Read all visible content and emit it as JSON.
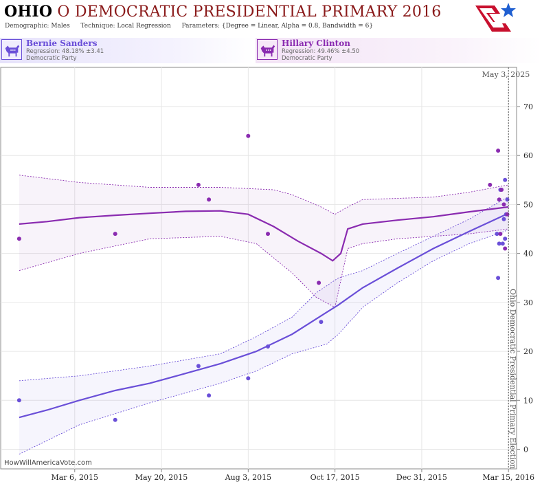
{
  "header": {
    "title_state": "OHIO",
    "title_rest": "O DEMOCRATIC PRESIDENTIAL PRIMARY 2016",
    "demographic_label": "Demographic:",
    "demographic_value": "Males",
    "technique_label": "Technique:",
    "technique_value": "Local Regression",
    "parameters_label": "Parameters:",
    "parameters_value": "{Degree = Linear, Alpha = 0.8, Bandwidth = 6}"
  },
  "candidates": [
    {
      "name": "Bernie Sanders",
      "regression": "Regression: 48.18% ±3.41",
      "party": "Democratic Party",
      "color": "#6a4fd8"
    },
    {
      "name": "Hillary Clinton",
      "regression": "Regression: 49.46% ±4.50",
      "party": "Democratic Party",
      "color": "#8a2bb0"
    }
  ],
  "footer": {
    "watermark": "HowWillAmericaVote.com"
  },
  "chart_data": {
    "type": "scatter",
    "title": "",
    "xlabel": "",
    "ylabel": "",
    "x_ticks": [
      "Mar 6, 2015",
      "May 20, 2015",
      "Aug 3, 2015",
      "Oct 17, 2015",
      "Dec 31, 2015",
      "Mar 15, 2016"
    ],
    "xlim": [
      "2015-01-01",
      "2016-03-22"
    ],
    "y_ticks": [
      0,
      10,
      20,
      30,
      40,
      50,
      60,
      70
    ],
    "ylim": [
      -4,
      78
    ],
    "grid": true,
    "election_marker": {
      "date": "2016-03-15",
      "label": "Ohio Democratic Presidential Primary Election"
    },
    "top_annotation": "May 3, 2025",
    "series": [
      {
        "name": "Bernie Sanders",
        "color": "#6a4fd8",
        "points": [
          [
            "2015-01-17",
            10
          ],
          [
            "2015-04-10",
            6
          ],
          [
            "2015-06-21",
            17
          ],
          [
            "2015-06-30",
            11
          ],
          [
            "2015-08-03",
            14.5
          ],
          [
            "2015-08-20",
            21
          ],
          [
            "2015-10-05",
            26
          ],
          [
            "2016-03-06",
            35
          ],
          [
            "2016-03-05",
            44
          ],
          [
            "2016-03-07",
            42
          ],
          [
            "2016-03-10",
            42
          ],
          [
            "2016-03-12",
            43
          ],
          [
            "2016-03-11",
            47
          ],
          [
            "2016-03-08",
            53
          ],
          [
            "2016-03-12",
            55
          ],
          [
            "2016-03-14",
            51
          ],
          [
            "2016-03-13",
            48
          ]
        ],
        "fit": [
          [
            "2015-01-17",
            6.5
          ],
          [
            "2015-02-10",
            8
          ],
          [
            "2015-03-10",
            10
          ],
          [
            "2015-04-10",
            12
          ],
          [
            "2015-05-10",
            13.5
          ],
          [
            "2015-06-10",
            15.5
          ],
          [
            "2015-07-10",
            17.5
          ],
          [
            "2015-08-10",
            20
          ],
          [
            "2015-09-10",
            23.5
          ],
          [
            "2015-10-10",
            28
          ],
          [
            "2015-10-20",
            29.5
          ],
          [
            "2015-11-10",
            33
          ],
          [
            "2015-12-10",
            37
          ],
          [
            "2016-01-10",
            41
          ],
          [
            "2016-02-10",
            44.5
          ],
          [
            "2016-03-15",
            48.2
          ]
        ],
        "band_upper": [
          [
            "2015-01-17",
            14
          ],
          [
            "2015-03-10",
            15
          ],
          [
            "2015-05-10",
            17
          ],
          [
            "2015-07-10",
            19.5
          ],
          [
            "2015-08-10",
            23
          ],
          [
            "2015-09-10",
            27
          ],
          [
            "2015-10-01",
            32
          ],
          [
            "2015-10-20",
            35
          ],
          [
            "2015-11-10",
            36.5
          ],
          [
            "2015-12-10",
            40
          ],
          [
            "2016-01-10",
            43.5
          ],
          [
            "2016-02-10",
            47
          ],
          [
            "2016-03-15",
            51.6
          ]
        ],
        "band_lower": [
          [
            "2015-01-17",
            -1
          ],
          [
            "2015-03-10",
            5
          ],
          [
            "2015-05-10",
            9.5
          ],
          [
            "2015-07-10",
            13.5
          ],
          [
            "2015-08-10",
            16
          ],
          [
            "2015-09-10",
            19.5
          ],
          [
            "2015-10-10",
            21.5
          ],
          [
            "2015-10-20",
            23.5
          ],
          [
            "2015-11-10",
            29
          ],
          [
            "2015-12-10",
            34
          ],
          [
            "2016-01-10",
            38.5
          ],
          [
            "2016-02-10",
            42
          ],
          [
            "2016-03-15",
            44.8
          ]
        ]
      },
      {
        "name": "Hillary Clinton",
        "color": "#8a2bb0",
        "points": [
          [
            "2015-01-17",
            43
          ],
          [
            "2015-04-10",
            44
          ],
          [
            "2015-06-21",
            54
          ],
          [
            "2015-06-30",
            51
          ],
          [
            "2015-08-03",
            64
          ],
          [
            "2015-08-20",
            44
          ],
          [
            "2015-10-03",
            34
          ],
          [
            "2016-02-28",
            54
          ],
          [
            "2016-03-06",
            61
          ],
          [
            "2016-03-07",
            51
          ],
          [
            "2016-03-08",
            44
          ],
          [
            "2016-03-09",
            53
          ],
          [
            "2016-03-11",
            50
          ],
          [
            "2016-03-12",
            41
          ],
          [
            "2016-03-14",
            48
          ]
        ],
        "fit": [
          [
            "2015-01-17",
            46
          ],
          [
            "2015-02-10",
            46.5
          ],
          [
            "2015-03-10",
            47.3
          ],
          [
            "2015-04-10",
            47.8
          ],
          [
            "2015-05-10",
            48.2
          ],
          [
            "2015-06-10",
            48.6
          ],
          [
            "2015-07-10",
            48.7
          ],
          [
            "2015-08-03",
            48
          ],
          [
            "2015-08-25",
            45.5
          ],
          [
            "2015-09-15",
            42.5
          ],
          [
            "2015-10-05",
            40
          ],
          [
            "2015-10-15",
            38.5
          ],
          [
            "2015-10-22",
            40
          ],
          [
            "2015-10-28",
            45
          ],
          [
            "2015-11-10",
            46
          ],
          [
            "2015-12-10",
            46.8
          ],
          [
            "2016-01-10",
            47.5
          ],
          [
            "2016-02-10",
            48.5
          ],
          [
            "2016-03-15",
            49.5
          ]
        ],
        "band_upper": [
          [
            "2015-01-17",
            56
          ],
          [
            "2015-03-10",
            54.5
          ],
          [
            "2015-05-10",
            53.5
          ],
          [
            "2015-07-10",
            53.5
          ],
          [
            "2015-08-25",
            53
          ],
          [
            "2015-09-10",
            52
          ],
          [
            "2015-10-05",
            49.5
          ],
          [
            "2015-10-17",
            48
          ],
          [
            "2015-10-28",
            49.5
          ],
          [
            "2015-11-10",
            51
          ],
          [
            "2016-01-10",
            51.5
          ],
          [
            "2016-02-10",
            52.5
          ],
          [
            "2016-03-15",
            54
          ]
        ],
        "band_lower": [
          [
            "2015-01-17",
            36.5
          ],
          [
            "2015-03-10",
            40
          ],
          [
            "2015-05-10",
            43
          ],
          [
            "2015-07-10",
            43.5
          ],
          [
            "2015-08-10",
            42
          ],
          [
            "2015-09-10",
            36
          ],
          [
            "2015-10-01",
            31
          ],
          [
            "2015-10-17",
            29
          ],
          [
            "2015-10-28",
            41
          ],
          [
            "2015-11-10",
            42
          ],
          [
            "2015-12-10",
            43
          ],
          [
            "2016-01-10",
            43.5
          ],
          [
            "2016-02-10",
            44
          ],
          [
            "2016-03-15",
            45
          ]
        ]
      }
    ]
  }
}
